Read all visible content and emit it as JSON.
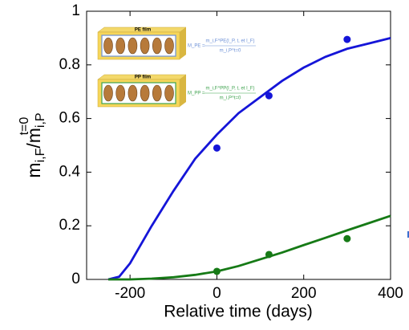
{
  "chart_data": {
    "type": "line",
    "xlabel": "Relative time (days)",
    "ylabel": {
      "base": "m",
      "sub1": "i,F",
      "mid": "/m",
      "sub2": "i,P",
      "sup": "t=0"
    },
    "xlim": [
      -300,
      400
    ],
    "xticks": [
      -200,
      0,
      200,
      400
    ],
    "ylim": [
      0,
      1
    ],
    "yticks": [
      0,
      0.2,
      0.4,
      0.6,
      0.8,
      1
    ],
    "grid": false,
    "series": [
      {
        "kind": "line",
        "color": "#1515d8",
        "x": [
          -250,
          -225,
          -200,
          -150,
          -100,
          -50,
          0,
          50,
          100,
          150,
          200,
          250,
          300,
          350,
          400
        ],
        "values": [
          0,
          0.01,
          0.06,
          0.2,
          0.33,
          0.45,
          0.54,
          0.62,
          0.68,
          0.74,
          0.79,
          0.83,
          0.86,
          0.88,
          0.9
        ]
      },
      {
        "kind": "line",
        "color": "#167a16",
        "x": [
          -250,
          -200,
          -150,
          -100,
          -50,
          0,
          50,
          100,
          150,
          200,
          250,
          300,
          350,
          400
        ],
        "values": [
          0,
          0,
          0.003,
          0.008,
          0.017,
          0.03,
          0.05,
          0.075,
          0.1,
          0.128,
          0.155,
          0.183,
          0.21,
          0.237
        ]
      },
      {
        "kind": "scatter",
        "color": "#1515d8",
        "x": [
          0,
          120,
          300
        ],
        "values": [
          0.49,
          0.685,
          0.895
        ]
      },
      {
        "kind": "scatter",
        "color": "#167a16",
        "x": [
          0,
          120,
          300
        ],
        "values": [
          0.03,
          0.093,
          0.152
        ]
      }
    ],
    "insets": [
      {
        "label": "PE film",
        "lhs": "M_PE =",
        "numerator": "m_i,F^PE(l_P, t, et l_F)",
        "denominator": "m_i,P^t=0",
        "color": "#6b8fd6",
        "border": "#6b8fd6"
      },
      {
        "label": "PP film",
        "lhs": "M_PP =",
        "numerator": "m_i,F^PP(l_P, t, et l_F)",
        "denominator": "m_i,P^t=0",
        "color": "#3fa34f",
        "border": "#3fa34f"
      }
    ]
  }
}
